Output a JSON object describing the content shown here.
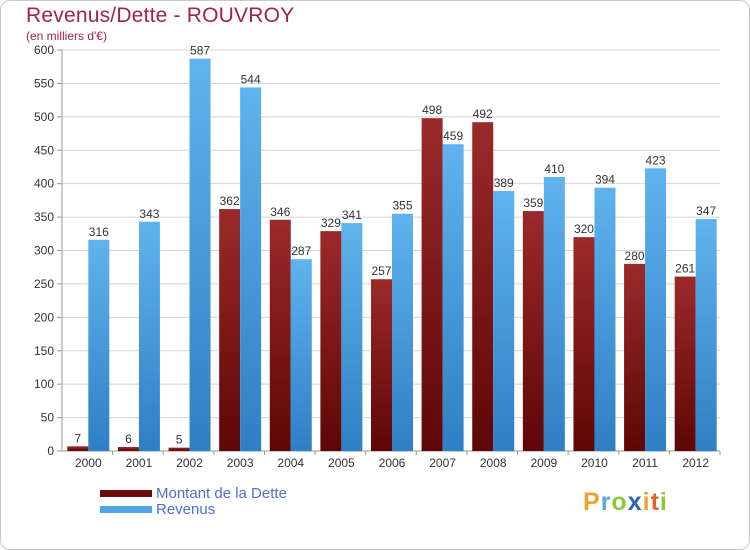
{
  "header": {
    "title": "Revenus/Dette - ROUVROY",
    "subtitle": "(en milliers d'€)"
  },
  "colors": {
    "title": "#a3214f",
    "dette": "#8b1a1a",
    "revenus": "#4ea6e6",
    "legend_text": "#4f6fd0"
  },
  "chart_data": {
    "type": "bar",
    "title": "Revenus/Dette - ROUVROY",
    "ylabel": "(en milliers d'€)",
    "xlabel": "",
    "ylim": [
      0,
      600
    ],
    "ytick_step": 50,
    "yticks": [
      "0",
      "50",
      "100",
      "150",
      "200",
      "250",
      "300",
      "350",
      "400",
      "450",
      "500",
      "550",
      "600"
    ],
    "grid": true,
    "legend_position": "bottom-left",
    "categories": [
      "2000",
      "2001",
      "2002",
      "2003",
      "2004",
      "2005",
      "2006",
      "2007",
      "2008",
      "2009",
      "2010",
      "2011",
      "2012"
    ],
    "series": [
      {
        "name": "Montant de la Dette",
        "values": [
          7,
          6,
          5,
          362,
          346,
          329,
          257,
          498,
          492,
          359,
          320,
          280,
          261
        ]
      },
      {
        "name": "Revenus",
        "values": [
          316,
          343,
          587,
          544,
          287,
          341,
          355,
          459,
          389,
          410,
          394,
          423,
          347
        ]
      }
    ]
  },
  "legend": {
    "items": [
      {
        "label": "Montant de la Dette",
        "color": "#6b0b0b"
      },
      {
        "label": "Revenus",
        "color": "#4ea6e6"
      }
    ]
  },
  "logo": {
    "letters": [
      {
        "char": "P",
        "color": "#f0a22e"
      },
      {
        "char": "r",
        "color": "#5aa8de"
      },
      {
        "char": "o",
        "color": "#8cc63f"
      },
      {
        "char": "x",
        "color": "#2b64b5"
      },
      {
        "char": "i",
        "color": "#f0a22e"
      },
      {
        "char": "t",
        "color": "#e8632b"
      },
      {
        "char": "i",
        "color": "#8cc63f"
      }
    ]
  }
}
